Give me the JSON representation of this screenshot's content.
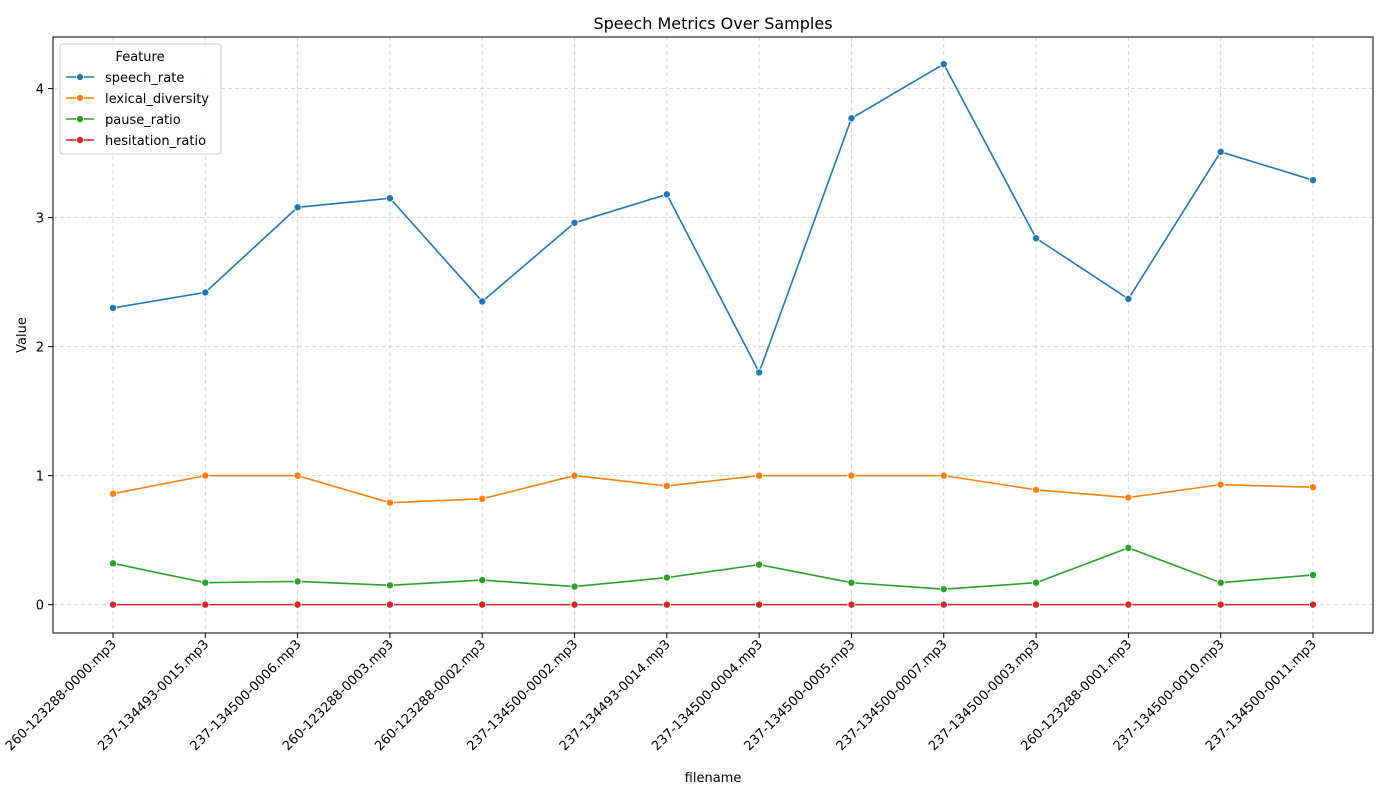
{
  "chart_data": {
    "type": "line",
    "title": "Speech Metrics Over Samples",
    "xlabel": "filename",
    "ylabel": "Value",
    "legend_title": "Feature",
    "legend_position": "top-left",
    "grid": true,
    "ylim": [
      -0.22,
      4.4
    ],
    "yticks": [
      0,
      1,
      2,
      3,
      4
    ],
    "categories": [
      "260-123288-0000.mp3",
      "237-134493-0015.mp3",
      "237-134500-0006.mp3",
      "260-123288-0003.mp3",
      "260-123288-0002.mp3",
      "237-134500-0002.mp3",
      "237-134493-0014.mp3",
      "237-134500-0004.mp3",
      "237-134500-0005.mp3",
      "237-134500-0007.mp3",
      "237-134500-0003.mp3",
      "260-123288-0001.mp3",
      "237-134500-0010.mp3",
      "237-134500-0011.mp3"
    ],
    "series": [
      {
        "name": "speech_rate",
        "color": "#1f77b4",
        "values": [
          2.3,
          2.42,
          3.08,
          3.15,
          2.35,
          2.96,
          3.18,
          1.8,
          3.77,
          4.19,
          2.84,
          2.37,
          3.51,
          3.29
        ]
      },
      {
        "name": "lexical_diversity",
        "color": "#ff7f0e",
        "values": [
          0.86,
          1.0,
          1.0,
          0.79,
          0.82,
          1.0,
          0.92,
          1.0,
          1.0,
          1.0,
          0.89,
          0.83,
          0.93,
          0.91
        ]
      },
      {
        "name": "pause_ratio",
        "color": "#2ca02c",
        "values": [
          0.32,
          0.17,
          0.18,
          0.15,
          0.19,
          0.14,
          0.21,
          0.31,
          0.17,
          0.12,
          0.17,
          0.44,
          0.17,
          0.23
        ]
      },
      {
        "name": "hesitation_ratio",
        "color": "#d62728",
        "values": [
          0,
          0,
          0,
          0,
          0,
          0,
          0,
          0,
          0,
          0,
          0,
          0,
          0,
          0
        ]
      }
    ]
  }
}
